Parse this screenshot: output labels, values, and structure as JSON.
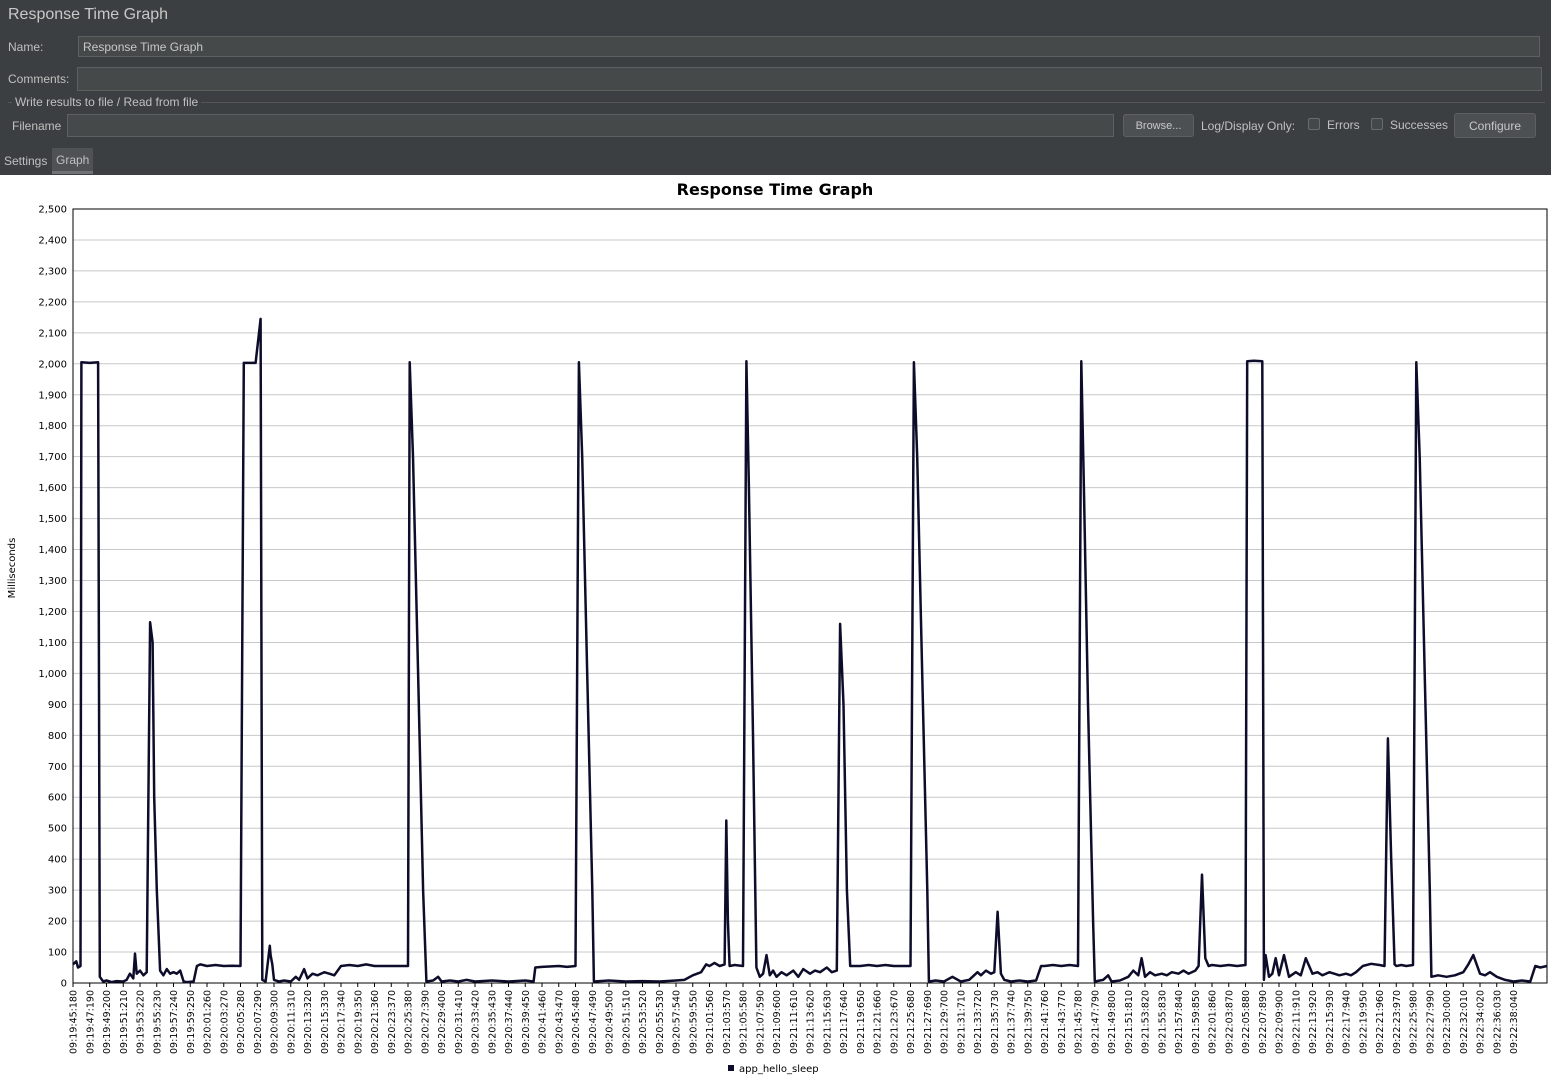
{
  "window": {
    "title": "Response Time Graph"
  },
  "form": {
    "name_label": "Name:",
    "name_value": "Response Time Graph",
    "comments_label": "Comments:",
    "comments_value": "",
    "group_title": "Write results to file / Read from file",
    "filename_label": "Filename",
    "filename_value": "",
    "browse_label": "Browse...",
    "log_display_label": "Log/Display Only:",
    "errors_label": "Errors",
    "errors_checked": false,
    "successes_label": "Successes",
    "successes_checked": false,
    "configure_label": "Configure"
  },
  "tabs": [
    {
      "label": "Settings",
      "active": false
    },
    {
      "label": "Graph",
      "active": true
    }
  ],
  "colors": {
    "panel_bg": "#3c3f41",
    "series_color": "#0d0d2b",
    "grid": "#c8c8c8"
  },
  "chart_data": {
    "type": "line",
    "title": "Response Time Graph",
    "ylabel": "Milliseconds",
    "xlabel": "",
    "ylim": [
      0,
      2500
    ],
    "y_ticks": [
      "0",
      "100",
      "200",
      "300",
      "400",
      "500",
      "600",
      "700",
      "800",
      "900",
      "1,000",
      "1,100",
      "1,200",
      "1,300",
      "1,400",
      "1,500",
      "1,600",
      "1,700",
      "1,800",
      "1,900",
      "2,000",
      "2,100",
      "2,200",
      "2,300",
      "2,400",
      "2,500"
    ],
    "grid": true,
    "legend_position": "bottom",
    "x_tick_labels": [
      "09:19:45:180",
      "09:19:47:190",
      "09:19:49:200",
      "09:19:51:210",
      "09:19:53:220",
      "09:19:55:230",
      "09:19:57:240",
      "09:19:59:250",
      "09:20:01:260",
      "09:20:03:270",
      "09:20:05:280",
      "09:20:07:290",
      "09:20:09:300",
      "09:20:11:310",
      "09:20:13:320",
      "09:20:15:330",
      "09:20:17:340",
      "09:20:19:350",
      "09:20:21:360",
      "09:20:23:370",
      "09:20:25:380",
      "09:20:27:390",
      "09:20:29:400",
      "09:20:31:410",
      "09:20:33:420",
      "09:20:35:430",
      "09:20:37:440",
      "09:20:39:450",
      "09:20:41:460",
      "09:20:43:470",
      "09:20:45:480",
      "09:20:47:490",
      "09:20:49:500",
      "09:20:51:510",
      "09:20:53:520",
      "09:20:55:530",
      "09:20:57:540",
      "09:20:59:550",
      "09:21:01:560",
      "09:21:03:570",
      "09:21:05:580",
      "09:21:07:590",
      "09:21:09:600",
      "09:21:11:610",
      "09:21:13:620",
      "09:21:15:630",
      "09:21:17:640",
      "09:21:19:650",
      "09:21:21:660",
      "09:21:23:670",
      "09:21:25:680",
      "09:21:27:690",
      "09:21:29:700",
      "09:21:31:710",
      "09:21:33:720",
      "09:21:35:730",
      "09:21:37:740",
      "09:21:39:750",
      "09:21:41:760",
      "09:21:43:770",
      "09:21:45:780",
      "09:21:47:790",
      "09:21:49:800",
      "09:21:51:810",
      "09:21:53:820",
      "09:21:55:830",
      "09:21:57:840",
      "09:21:59:850",
      "09:22:01:860",
      "09:22:03:870",
      "09:22:05:880",
      "09:22:07:890",
      "09:22:09:900",
      "09:22:11:910",
      "09:22:13:920",
      "09:22:15:930",
      "09:22:17:940",
      "09:22:19:950",
      "09:22:21:960",
      "09:22:23:970",
      "09:22:25:980",
      "09:22:27:990",
      "09:22:30:000",
      "09:22:32:010",
      "09:22:34:020",
      "09:22:36:030",
      "09:22:38:040"
    ],
    "x_range_index": [
      0,
      88
    ],
    "series": [
      {
        "name": "app_hello_sleep",
        "points": [
          [
            0,
            60
          ],
          [
            0.2,
            70
          ],
          [
            0.3,
            50
          ],
          [
            0.45,
            55
          ],
          [
            0.5,
            2005
          ],
          [
            1.0,
            2003
          ],
          [
            1.5,
            2005
          ],
          [
            1.6,
            20
          ],
          [
            1.8,
            5
          ],
          [
            2,
            8
          ],
          [
            2.3,
            3
          ],
          [
            2.6,
            6
          ],
          [
            3,
            5
          ],
          [
            3.2,
            10
          ],
          [
            3.4,
            30
          ],
          [
            3.6,
            15
          ],
          [
            3.7,
            95
          ],
          [
            3.8,
            30
          ],
          [
            4.0,
            40
          ],
          [
            4.2,
            25
          ],
          [
            4.4,
            35
          ],
          [
            4.6,
            1165
          ],
          [
            4.75,
            1100
          ],
          [
            4.85,
            600
          ],
          [
            5.0,
            300
          ],
          [
            5.2,
            40
          ],
          [
            5.4,
            25
          ],
          [
            5.6,
            45
          ],
          [
            5.8,
            30
          ],
          [
            6,
            35
          ],
          [
            6.2,
            30
          ],
          [
            6.4,
            40
          ],
          [
            6.6,
            5
          ],
          [
            6.8,
            3
          ],
          [
            7.2,
            5
          ],
          [
            7.4,
            55
          ],
          [
            7.6,
            60
          ],
          [
            8,
            55
          ],
          [
            8.5,
            58
          ],
          [
            9,
            55
          ],
          [
            9.5,
            56
          ],
          [
            10,
            55
          ],
          [
            10.2,
            2003
          ],
          [
            10.9,
            2003
          ],
          [
            11.2,
            2145
          ],
          [
            11.3,
            10
          ],
          [
            11.5,
            5
          ],
          [
            11.75,
            120
          ],
          [
            11.8,
            90
          ],
          [
            11.9,
            60
          ],
          [
            12,
            10
          ],
          [
            12.3,
            5
          ],
          [
            12.6,
            8
          ],
          [
            13,
            5
          ],
          [
            13.3,
            20
          ],
          [
            13.5,
            10
          ],
          [
            13.8,
            45
          ],
          [
            14,
            15
          ],
          [
            14.3,
            30
          ],
          [
            14.6,
            25
          ],
          [
            15,
            35
          ],
          [
            15.3,
            30
          ],
          [
            15.6,
            25
          ],
          [
            16,
            55
          ],
          [
            16.5,
            58
          ],
          [
            17,
            55
          ],
          [
            17.5,
            60
          ],
          [
            18,
            55
          ],
          [
            18.5,
            55
          ],
          [
            19,
            55
          ],
          [
            19.5,
            55
          ],
          [
            20,
            55
          ],
          [
            20.1,
            2005
          ],
          [
            20.3,
            1700
          ],
          [
            20.6,
            1000
          ],
          [
            20.9,
            300
          ],
          [
            21.1,
            5
          ],
          [
            21.5,
            8
          ],
          [
            21.8,
            20
          ],
          [
            22,
            5
          ],
          [
            22.5,
            8
          ],
          [
            23,
            5
          ],
          [
            23.5,
            10
          ],
          [
            24,
            5
          ],
          [
            25,
            8
          ],
          [
            26,
            5
          ],
          [
            27,
            8
          ],
          [
            27.5,
            5
          ],
          [
            27.6,
            50
          ],
          [
            28,
            52
          ],
          [
            29,
            55
          ],
          [
            29.5,
            52
          ],
          [
            30,
            55
          ],
          [
            30.2,
            2005
          ],
          [
            30.4,
            1700
          ],
          [
            30.7,
            1000
          ],
          [
            31.0,
            300
          ],
          [
            31.1,
            5
          ],
          [
            32,
            8
          ],
          [
            33,
            5
          ],
          [
            34,
            6
          ],
          [
            35,
            5
          ],
          [
            36,
            8
          ],
          [
            36.5,
            10
          ],
          [
            37,
            25
          ],
          [
            37.5,
            35
          ],
          [
            37.8,
            60
          ],
          [
            38,
            55
          ],
          [
            38.3,
            65
          ],
          [
            38.6,
            55
          ],
          [
            38.9,
            60
          ],
          [
            39.0,
            525
          ],
          [
            39.1,
            200
          ],
          [
            39.2,
            55
          ],
          [
            39.5,
            58
          ],
          [
            40,
            55
          ],
          [
            40.2,
            2008
          ],
          [
            40.35,
            1600
          ],
          [
            40.6,
            800
          ],
          [
            40.8,
            50
          ],
          [
            41,
            20
          ],
          [
            41.2,
            30
          ],
          [
            41.4,
            90
          ],
          [
            41.6,
            25
          ],
          [
            41.8,
            40
          ],
          [
            42,
            20
          ],
          [
            42.3,
            35
          ],
          [
            42.6,
            25
          ],
          [
            43,
            40
          ],
          [
            43.3,
            20
          ],
          [
            43.6,
            45
          ],
          [
            44,
            30
          ],
          [
            44.3,
            40
          ],
          [
            44.6,
            35
          ],
          [
            45,
            50
          ],
          [
            45.3,
            35
          ],
          [
            45.6,
            40
          ],
          [
            45.8,
            1160
          ],
          [
            46.0,
            900
          ],
          [
            46.2,
            300
          ],
          [
            46.4,
            55
          ],
          [
            47,
            55
          ],
          [
            47.5,
            58
          ],
          [
            48,
            55
          ],
          [
            48.5,
            58
          ],
          [
            49,
            55
          ],
          [
            49.5,
            55
          ],
          [
            50,
            55
          ],
          [
            50.2,
            2005
          ],
          [
            50.4,
            1700
          ],
          [
            50.7,
            1000
          ],
          [
            51.0,
            300
          ],
          [
            51.1,
            5
          ],
          [
            51.5,
            8
          ],
          [
            52,
            5
          ],
          [
            52.5,
            20
          ],
          [
            53,
            5
          ],
          [
            53.5,
            10
          ],
          [
            54,
            35
          ],
          [
            54.2,
            25
          ],
          [
            54.5,
            40
          ],
          [
            54.8,
            30
          ],
          [
            55,
            35
          ],
          [
            55.2,
            230
          ],
          [
            55.4,
            30
          ],
          [
            55.6,
            10
          ],
          [
            56,
            5
          ],
          [
            56.5,
            8
          ],
          [
            57,
            5
          ],
          [
            57.5,
            8
          ],
          [
            57.8,
            55
          ],
          [
            58,
            55
          ],
          [
            58.5,
            58
          ],
          [
            59,
            55
          ],
          [
            59.5,
            58
          ],
          [
            60,
            55
          ],
          [
            60.2,
            2008
          ],
          [
            60.35,
            1600
          ],
          [
            60.6,
            900
          ],
          [
            60.9,
            200
          ],
          [
            61,
            5
          ],
          [
            61.5,
            10
          ],
          [
            61.8,
            25
          ],
          [
            62,
            5
          ],
          [
            62.5,
            8
          ],
          [
            63,
            20
          ],
          [
            63.3,
            40
          ],
          [
            63.6,
            25
          ],
          [
            63.8,
            80
          ],
          [
            64,
            20
          ],
          [
            64.3,
            35
          ],
          [
            64.6,
            25
          ],
          [
            65,
            30
          ],
          [
            65.3,
            25
          ],
          [
            65.6,
            35
          ],
          [
            66,
            30
          ],
          [
            66.3,
            40
          ],
          [
            66.6,
            30
          ],
          [
            67,
            40
          ],
          [
            67.2,
            55
          ],
          [
            67.4,
            350
          ],
          [
            67.6,
            80
          ],
          [
            67.8,
            55
          ],
          [
            68,
            58
          ],
          [
            68.5,
            55
          ],
          [
            69,
            58
          ],
          [
            69.5,
            55
          ],
          [
            70,
            58
          ],
          [
            70.1,
            2008
          ],
          [
            70.5,
            2010
          ],
          [
            71.0,
            2008
          ],
          [
            71.1,
            10
          ],
          [
            71.2,
            90
          ],
          [
            71.4,
            20
          ],
          [
            71.6,
            30
          ],
          [
            71.8,
            80
          ],
          [
            72,
            25
          ],
          [
            72.3,
            90
          ],
          [
            72.6,
            20
          ],
          [
            73,
            35
          ],
          [
            73.3,
            25
          ],
          [
            73.6,
            80
          ],
          [
            74,
            30
          ],
          [
            74.3,
            35
          ],
          [
            74.6,
            25
          ],
          [
            75,
            35
          ],
          [
            75.3,
            30
          ],
          [
            75.6,
            25
          ],
          [
            76,
            30
          ],
          [
            76.3,
            25
          ],
          [
            76.6,
            35
          ],
          [
            77,
            55
          ],
          [
            77.5,
            62
          ],
          [
            78,
            58
          ],
          [
            78.3,
            55
          ],
          [
            78.5,
            790
          ],
          [
            78.7,
            400
          ],
          [
            78.9,
            60
          ],
          [
            79,
            55
          ],
          [
            79.3,
            58
          ],
          [
            79.6,
            55
          ],
          [
            80,
            58
          ],
          [
            80.2,
            2005
          ],
          [
            80.4,
            1700
          ],
          [
            80.7,
            1000
          ],
          [
            81.0,
            300
          ],
          [
            81.1,
            20
          ],
          [
            81.5,
            25
          ],
          [
            82,
            20
          ],
          [
            82.5,
            25
          ],
          [
            83,
            35
          ],
          [
            83.3,
            60
          ],
          [
            83.6,
            90
          ],
          [
            84,
            30
          ],
          [
            84.3,
            25
          ],
          [
            84.6,
            35
          ],
          [
            85,
            20
          ],
          [
            85.5,
            10
          ],
          [
            86,
            5
          ],
          [
            86.5,
            8
          ],
          [
            87,
            5
          ],
          [
            87.3,
            55
          ],
          [
            87.6,
            50
          ],
          [
            88,
            55
          ]
        ]
      }
    ]
  }
}
